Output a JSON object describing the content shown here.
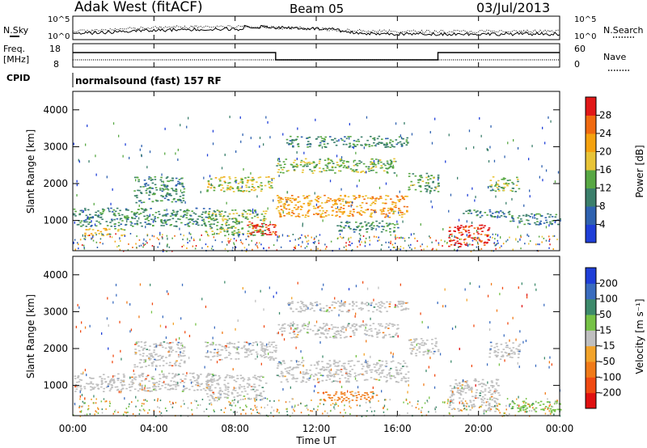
{
  "header": {
    "station": "Adak West (fitACF)",
    "beam": "Beam 05",
    "date": "03/Jul/2013"
  },
  "panels": {
    "nsky_label": "N.Sky",
    "nsearch_label": "N.Search",
    "freq_label_1": "Freq.",
    "freq_label_2": "[MHz]",
    "nave_label": "Nave",
    "cpid_label": "CPID",
    "cpid_value": "normalsound (fast) 157 RF",
    "nsky_ticks": [
      "10^5",
      "10^0"
    ],
    "nsearch_ticks": [
      "10^5",
      "10^0"
    ],
    "freq_ticks": [
      "18",
      "8"
    ],
    "nave_ticks": [
      "60",
      "0"
    ]
  },
  "axes": {
    "xlabel": "Time UT",
    "ylabel": "Slant Range [km]",
    "xticks": [
      "00:00",
      "04:00",
      "08:00",
      "12:00",
      "16:00",
      "20:00",
      "00:00"
    ],
    "yticks": [
      "1000",
      "2000",
      "3000",
      "4000"
    ]
  },
  "colorbars": {
    "power": {
      "label": "Power [dB]",
      "ticks": [
        "4",
        "8",
        "12",
        "16",
        "20",
        "24",
        "28"
      ],
      "colors": [
        "#1f3fd8",
        "#2f62b0",
        "#3b7f6b",
        "#58a844",
        "#e8c437",
        "#f5a20f",
        "#f06a10",
        "#e11818"
      ]
    },
    "velocity": {
      "label": "Velocity [m s⁻¹]",
      "ticks": [
        "200",
        "100",
        "50",
        "15",
        "-15",
        "-50",
        "-100",
        "-200"
      ],
      "colors": [
        "#1f3fd8",
        "#3a6cbf",
        "#3d8a6b",
        "#76c246",
        "#bfbfbf",
        "#f2a32a",
        "#f07a18",
        "#f04a12",
        "#e01010"
      ]
    }
  },
  "chart_data": [
    {
      "type": "heatmap",
      "title": "Power",
      "xlabel": "Time UT",
      "ylabel": "Slant Range [km]",
      "xlim_hours": [
        0,
        24
      ],
      "ylim_km": [
        180,
        4500
      ],
      "colorbar_range_db": [
        0,
        30
      ],
      "regions": [
        {
          "t": [
            0,
            7
          ],
          "r": [
            850,
            1350
          ],
          "v": 10
        },
        {
          "t": [
            0.5,
            2.5
          ],
          "r": [
            600,
            800
          ],
          "v": 18
        },
        {
          "t": [
            3,
            5.5
          ],
          "r": [
            1500,
            2200
          ],
          "v": 10
        },
        {
          "t": [
            6.5,
            10
          ],
          "r": [
            1800,
            2200
          ],
          "v": 16
        },
        {
          "t": [
            6.5,
            9.5
          ],
          "r": [
            600,
            1300
          ],
          "v": 14
        },
        {
          "t": [
            8.5,
            10
          ],
          "r": [
            620,
            980
          ],
          "v": 27
        },
        {
          "t": [
            10,
            16.5
          ],
          "r": [
            1100,
            1700
          ],
          "v": 21
        },
        {
          "t": [
            10,
            16
          ],
          "r": [
            2300,
            2700
          ],
          "v": 14
        },
        {
          "t": [
            10.5,
            16.5
          ],
          "r": [
            3000,
            3300
          ],
          "v": 10
        },
        {
          "t": [
            13,
            16
          ],
          "r": [
            700,
            1000
          ],
          "v": 10
        },
        {
          "t": [
            16.5,
            18
          ],
          "r": [
            1800,
            2300
          ],
          "v": 12
        },
        {
          "t": [
            18.5,
            20.5
          ],
          "r": [
            300,
            900
          ],
          "v": 28
        },
        {
          "t": [
            19,
            21.5
          ],
          "r": [
            1100,
            1300
          ],
          "v": 9
        },
        {
          "t": [
            20.5,
            22
          ],
          "r": [
            1800,
            2200
          ],
          "v": 14
        },
        {
          "t": [
            21.5,
            24
          ],
          "r": [
            900,
            1200
          ],
          "v": 9
        }
      ]
    },
    {
      "type": "heatmap",
      "title": "Velocity",
      "xlabel": "Time UT",
      "ylabel": "Slant Range [km]",
      "xlim_hours": [
        0,
        24
      ],
      "ylim_km": [
        180,
        4500
      ],
      "colorbar_range_ms": [
        -200,
        200
      ],
      "regions": [
        {
          "t": [
            0,
            7
          ],
          "r": [
            850,
            1350
          ],
          "v": 0
        },
        {
          "t": [
            3,
            5.5
          ],
          "r": [
            1500,
            2200
          ],
          "v": 0
        },
        {
          "t": [
            6.5,
            10
          ],
          "r": [
            1700,
            2200
          ],
          "v": 0
        },
        {
          "t": [
            6.5,
            9.5
          ],
          "r": [
            600,
            1300
          ],
          "v": 0
        },
        {
          "t": [
            10,
            16.5
          ],
          "r": [
            1100,
            1700
          ],
          "v": 0
        },
        {
          "t": [
            10,
            16
          ],
          "r": [
            2300,
            2700
          ],
          "v": 0
        },
        {
          "t": [
            10.5,
            16.5
          ],
          "r": [
            3000,
            3300
          ],
          "v": 0
        },
        {
          "t": [
            12,
            15
          ],
          "r": [
            600,
            850
          ],
          "v": -60
        },
        {
          "t": [
            16.5,
            18
          ],
          "r": [
            1800,
            2300
          ],
          "v": 0
        },
        {
          "t": [
            18.5,
            21
          ],
          "r": [
            300,
            1200
          ],
          "v": 0
        },
        {
          "t": [
            20.5,
            22
          ],
          "r": [
            1700,
            2200
          ],
          "v": 0
        },
        {
          "t": [
            21.5,
            24
          ],
          "r": [
            300,
            600
          ],
          "v": 40
        }
      ]
    }
  ]
}
